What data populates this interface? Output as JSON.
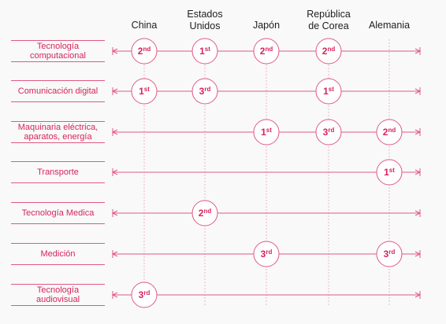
{
  "colors": {
    "accent": "#d6245c",
    "line": "#e05a82",
    "dotted": "#f0b3c6"
  },
  "countries": [
    "China",
    "Estados\nUnidos",
    "Japón",
    "República\nde Corea",
    "Alemania"
  ],
  "categories": [
    {
      "label": "Tecnología\ncomputacional",
      "ranks": [
        [
          "China",
          "2",
          "nd"
        ],
        [
          "Estados Unidos",
          "1",
          "st"
        ],
        [
          "Japón",
          "2",
          "nd"
        ],
        [
          "República de Corea",
          "2",
          "nd"
        ]
      ]
    },
    {
      "label": "Comunicación digital",
      "ranks": [
        [
          "China",
          "1",
          "st"
        ],
        [
          "Estados Unidos",
          "3",
          "rd"
        ],
        [
          "República de Corea",
          "1",
          "st"
        ]
      ]
    },
    {
      "label": "Maquinaria eléctrica,\naparatos, energía",
      "ranks": [
        [
          "Japón",
          "1",
          "st"
        ],
        [
          "República de Corea",
          "3",
          "rd"
        ],
        [
          "Alemania",
          "2",
          "nd"
        ]
      ]
    },
    {
      "label": "Transporte",
      "ranks": [
        [
          "Alemania",
          "1",
          "st"
        ]
      ]
    },
    {
      "label": "Tecnología Medica",
      "ranks": [
        [
          "Estados Unidos",
          "2",
          "nd"
        ]
      ]
    },
    {
      "label": "Medición",
      "ranks": [
        [
          "Japón",
          "3",
          "rd"
        ],
        [
          "Alemania",
          "3",
          "rd"
        ]
      ]
    },
    {
      "label": "Tecnología\naudiovisual",
      "ranks": [
        [
          "China",
          "3",
          "rd"
        ]
      ]
    }
  ]
}
